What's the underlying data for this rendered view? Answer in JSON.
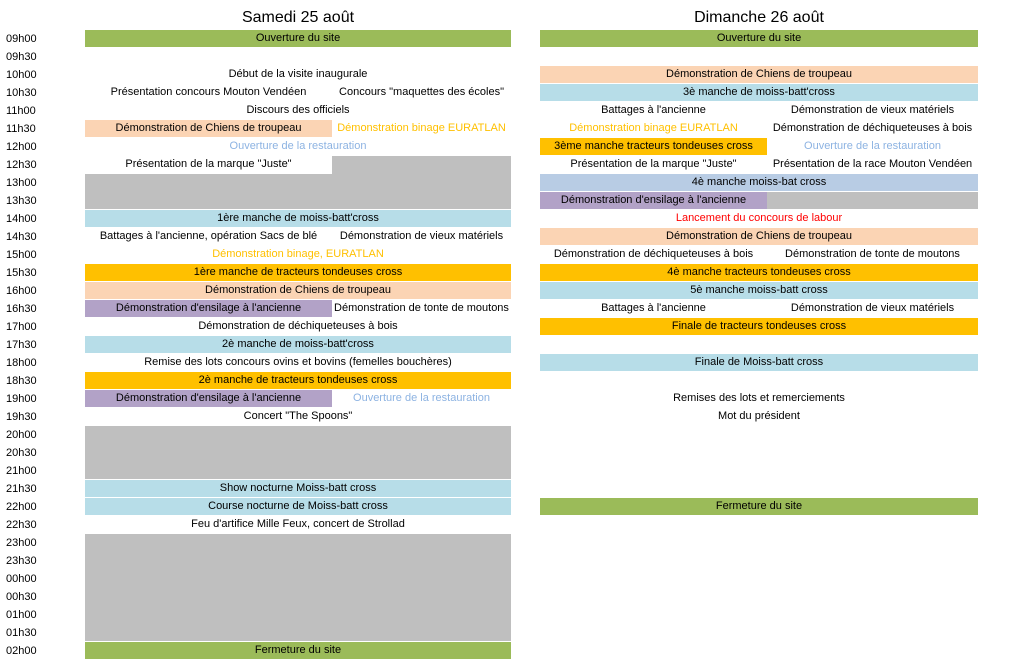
{
  "day1": {
    "title": "Samedi 25 août"
  },
  "day2": {
    "title": "Dimanche 26 août"
  },
  "times": [
    "09h00",
    "09h30",
    "10h00",
    "10h30",
    "11h00",
    "11h30",
    "12h00",
    "12h30",
    "13h00",
    "13h30",
    "14h00",
    "14h30",
    "15h00",
    "15h30",
    "16h00",
    "16h30",
    "17h00",
    "17h30",
    "18h00",
    "18h30",
    "19h00",
    "19h30",
    "20h00",
    "20h30",
    "21h00",
    "21h30",
    "22h00",
    "22h30",
    "23h00",
    "23h30",
    "00h00",
    "00h30",
    "01h00",
    "01h30",
    "02h00"
  ],
  "sat": {
    "r0": "Ouverture du site",
    "r2": "Début de la visite inaugurale",
    "r3a": "Présentation concours Mouton Vendéen",
    "r3b": "Concours \"maquettes des écoles\"",
    "r4": "Discours des officiels",
    "r5a": "Démonstration de Chiens de troupeau",
    "r5b": "Démonstration binage EURATLAN",
    "r6": "Ouverture de la restauration",
    "r7": "Présentation de la marque \"Juste\"",
    "r10": "1ère manche de moiss-batt'cross",
    "r11a": "Battages à l'ancienne, opération Sacs de blé",
    "r11b": "Démonstration de vieux matériels",
    "r12": "Démonstration binage, EURATLAN",
    "r13": "1ère manche de tracteurs tondeuses cross",
    "r14": "Démonstration de Chiens de troupeau",
    "r15a": "Démonstration d'ensilage à l'ancienne",
    "r15b": "Démonstration de tonte de moutons",
    "r16": "Démonstration de déchiqueteuses à bois",
    "r17": "2è manche de moiss-batt'cross",
    "r18": "Remise des lots concours ovins et bovins (femelles bouchères)",
    "r19": "2è manche de tracteurs tondeuses cross",
    "r20a": "Démonstration d'ensilage à l'ancienne",
    "r20b": "Ouverture de la restauration",
    "r21": "Concert \"The Spoons\"",
    "r25": "Show nocturne Moiss-batt cross",
    "r26": "Course nocturne de Moiss-batt cross",
    "r27": "Feu d'artifice Mille Feux, concert de Strollad",
    "r34": "Fermeture du site"
  },
  "sun": {
    "r0": "Ouverture du site",
    "r2": "Démonstration de Chiens de troupeau",
    "r3": "3è manche de moiss-batt'cross",
    "r4a": "Battages à l'ancienne",
    "r4b": "Démonstration de vieux matériels",
    "r5a": "Démonstration binage EURATLAN",
    "r5b": "Démonstration de déchiqueteuses à bois",
    "r6a": "3ème manche tracteurs tondeuses cross",
    "r6b": "Ouverture de la  restauration",
    "r7a": "Présentation de la marque \"Juste\"",
    "r7b": "Présentation de la race Mouton Vendéen",
    "r8": "4è manche moiss-bat cross",
    "r9": "Démonstration d'ensilage à l'ancienne",
    "r10": "Lancement du concours de labour",
    "r11": "Démonstration de Chiens de troupeau",
    "r12a": "Démonstration de déchiqueteuses à bois",
    "r12b": "Démonstration de tonte de moutons",
    "r13": "4è manche tracteurs tondeuses cross",
    "r14": "5è manche moiss-batt cross",
    "r15a": "Battages à l'ancienne",
    "r15b": "Démonstration de vieux matériels",
    "r16": "Finale de tracteurs tondeuses cross",
    "r18": "Finale de Moiss-batt cross",
    "r20": "Remises des lots et remerciements",
    "r21": "Mot du président",
    "r26": "Fermeture du site"
  }
}
